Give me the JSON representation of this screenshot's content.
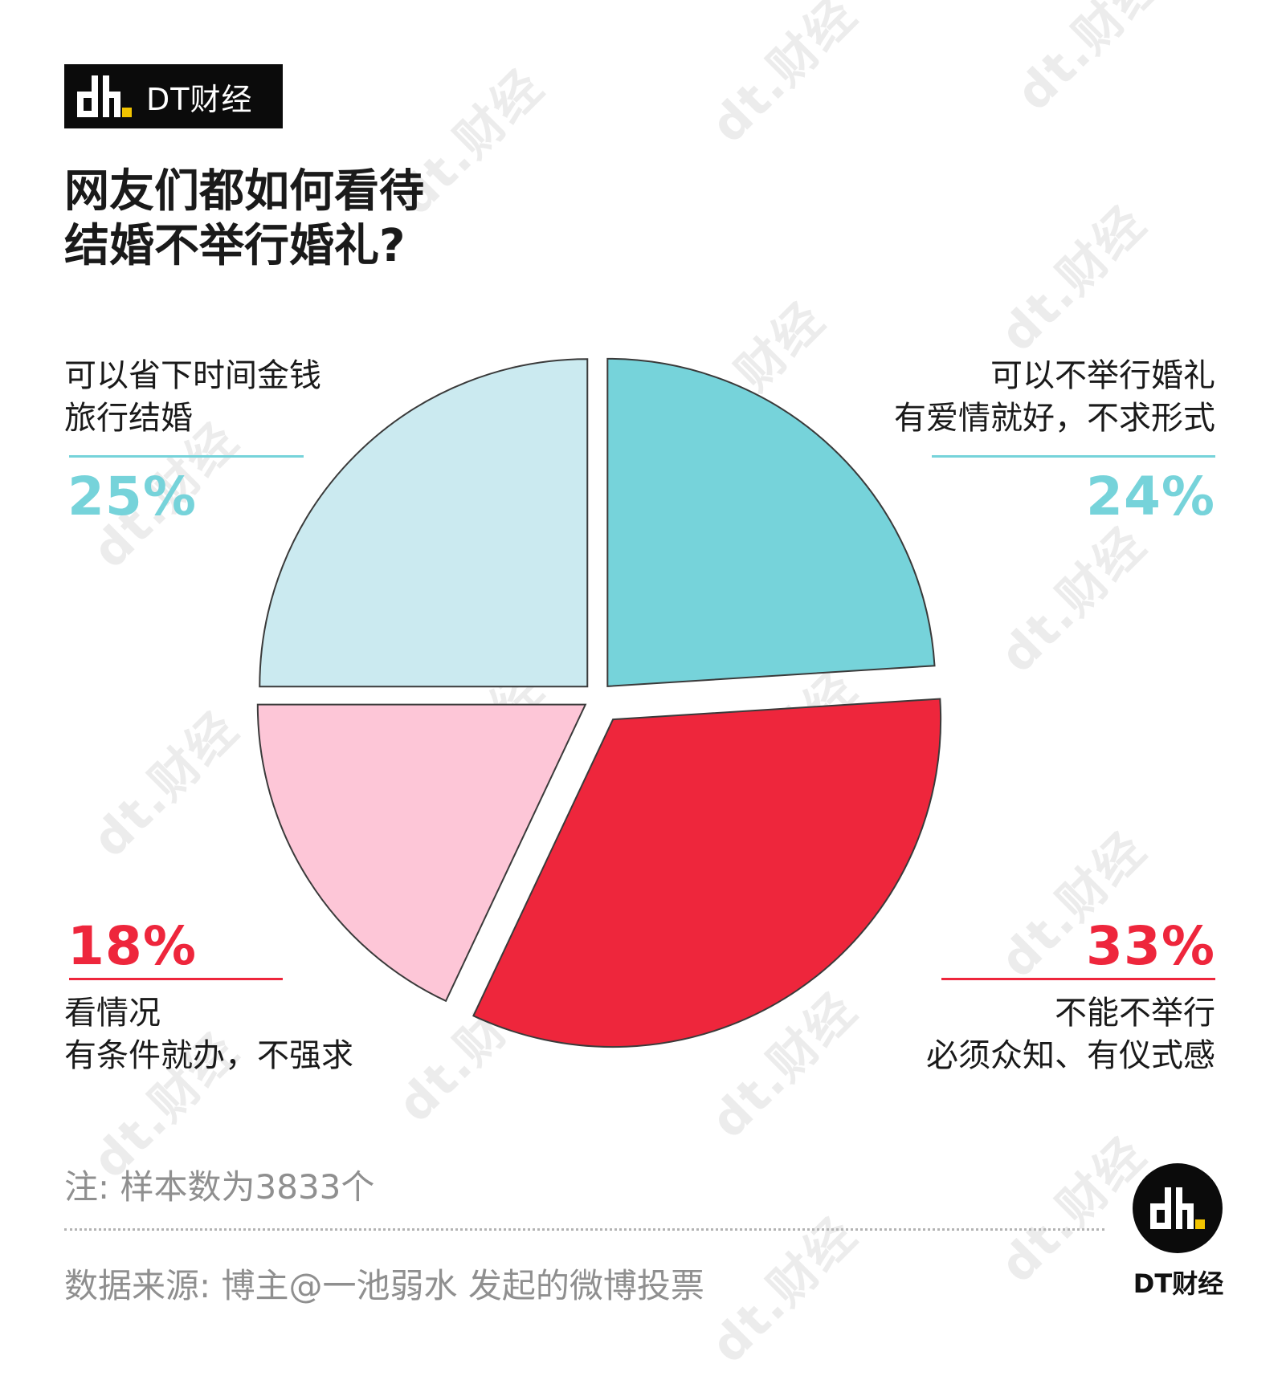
{
  "brand": {
    "name": "DT财经",
    "watermark": "dt.财经",
    "colors": {
      "black": "#0b0b0b",
      "yellow": "#f2c400"
    }
  },
  "title": {
    "line1": "网友们都如何看待",
    "line2": "结婚不举行婚礼?"
  },
  "note": "注: 样本数为3833个",
  "source": "数据来源: 博主@一池弱水 发起的微博投票",
  "chart_data": {
    "type": "pie",
    "start": "12 o'clock, clockwise",
    "exploded": true,
    "slices": [
      {
        "line1": "可以不举行婚礼",
        "line2": "有爱情就好，不求形式",
        "value": 24,
        "label": "24%",
        "fill": "#76d3da",
        "accent": "#76d3da",
        "position": "top-right"
      },
      {
        "line1": "不能不举行",
        "line2": "必须众知、有仪式感",
        "value": 33,
        "label": "33%",
        "fill": "#ee263c",
        "accent": "#ee263c",
        "position": "bottom-right"
      },
      {
        "line1": "看情况",
        "line2": "有条件就办，不强求",
        "value": 18,
        "label": "18%",
        "fill": "#fdc6d7",
        "accent": "#ee263c",
        "position": "bottom-left"
      },
      {
        "line1": "可以省下时间金钱",
        "line2": "旅行结婚",
        "value": 25,
        "label": "25%",
        "fill": "#cbeaf0",
        "accent": "#76d3da",
        "position": "top-left"
      }
    ]
  }
}
